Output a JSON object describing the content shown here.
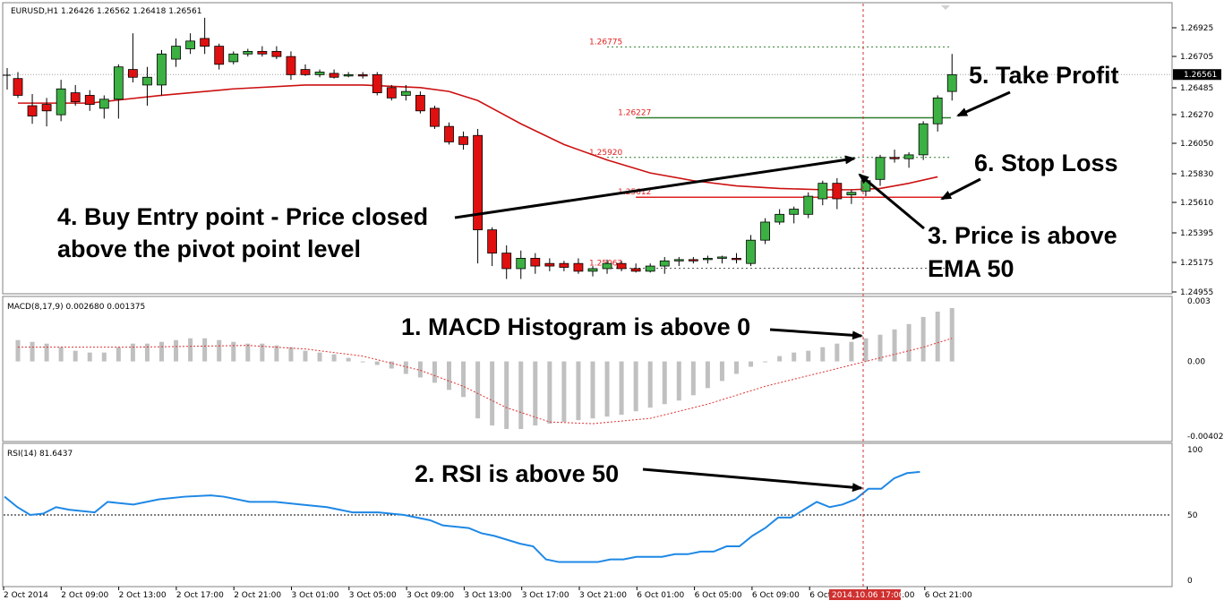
{
  "header": {
    "symbol_line": "EURUSD,H1  1.26426 1.26562 1.26418 1.26561",
    "macd_line": "MACD(8,17,9) 0.002680 0.001375",
    "rsi_line": "RSI(14) 81.6437"
  },
  "colors": {
    "bull": "#3cb043",
    "bear": "#e01010",
    "ema": "#cc1010",
    "take_profit_line": "#2e7d2e",
    "stop_loss_line": "#e02020",
    "rsi": "#1e88e5",
    "macd_hist": "#c0c0c0",
    "macd_signal": "#e03030",
    "time_marker": "#d03030"
  },
  "annotations": {
    "macd": "1. MACD Histogram is above 0",
    "rsi": "2. RSI is above 50",
    "ema_line1": "3. Price is above",
    "ema_line2": "EMA 50",
    "entry_line1": "4. Buy Entry point - Price closed",
    "entry_line2": "above the pivot point level",
    "take_profit": "5. Take Profit",
    "stop_loss": "6. Stop Loss"
  },
  "chart_data": [
    {
      "id": "price",
      "type": "candlestick",
      "symbol": "EURUSD",
      "timeframe": "H1",
      "ylim": [
        1.24935,
        1.26985
      ],
      "y_ticks": [
        "1.26925",
        "1.26705",
        "1.26485",
        "1.26270",
        "1.26050",
        "1.25830",
        "1.25610",
        "1.25395",
        "1.25175",
        "1.24955"
      ],
      "current_price_label": "1.26561",
      "candles": [
        [
          1.2653,
          1.2658,
          1.2638,
          1.264
        ],
        [
          1.2632,
          1.2641,
          1.2618,
          1.2624
        ],
        [
          1.2633,
          1.2638,
          1.2616,
          1.2628
        ],
        [
          1.2625,
          1.2652,
          1.262,
          1.2645
        ],
        [
          1.2642,
          1.2648,
          1.2632,
          1.2635
        ],
        [
          1.264,
          1.2644,
          1.2628,
          1.2633
        ],
        [
          1.263,
          1.264,
          1.2622,
          1.2637
        ],
        [
          1.2637,
          1.2664,
          1.2622,
          1.2662
        ],
        [
          1.266,
          1.2688,
          1.265,
          1.2654
        ],
        [
          1.2648,
          1.2662,
          1.2632,
          1.2654
        ],
        [
          1.2648,
          1.2675,
          1.264,
          1.2672
        ],
        [
          1.2668,
          1.2684,
          1.2662,
          1.2678
        ],
        [
          1.2676,
          1.2688,
          1.2672,
          1.2682
        ],
        [
          1.2684,
          1.27,
          1.2672,
          1.2678
        ],
        [
          1.2678,
          1.268,
          1.266,
          1.2664
        ],
        [
          1.2666,
          1.2674,
          1.2664,
          1.2672
        ],
        [
          1.2672,
          1.2676,
          1.267,
          1.2674
        ],
        [
          1.2674,
          1.2678,
          1.267,
          1.2672
        ],
        [
          1.2674,
          1.2678,
          1.2668,
          1.267
        ],
        [
          1.267,
          1.2674,
          1.2652,
          1.2656
        ],
        [
          1.266,
          1.2664,
          1.2655,
          1.2656
        ],
        [
          1.2656,
          1.266,
          1.2654,
          1.2658
        ],
        [
          1.2657,
          1.266,
          1.2653,
          1.2654
        ],
        [
          1.2656,
          1.2658,
          1.2654,
          1.2656
        ],
        [
          1.2656,
          1.2658,
          1.2653,
          1.2655
        ],
        [
          1.2656,
          1.2658,
          1.264,
          1.2642
        ],
        [
          1.2646,
          1.2648,
          1.2636,
          1.2638
        ],
        [
          1.264,
          1.2648,
          1.2636,
          1.2643
        ],
        [
          1.264,
          1.2643,
          1.2626,
          1.2628
        ],
        [
          1.263,
          1.2632,
          1.2614,
          1.2616
        ],
        [
          1.2616,
          1.2619,
          1.2602,
          1.2604
        ],
        [
          1.2608,
          1.2612,
          1.2598,
          1.2602
        ],
        [
          1.2609,
          1.2614,
          1.251,
          1.2536
        ],
        [
          1.2536,
          1.2538,
          1.2508,
          1.2518
        ],
        [
          1.2518,
          1.2524,
          1.2498,
          1.2506
        ],
        [
          1.2506,
          1.252,
          1.2498,
          1.2514
        ],
        [
          1.2514,
          1.2518,
          1.2502,
          1.2508
        ],
        [
          1.251,
          1.2514,
          1.2504,
          1.2508
        ],
        [
          1.251,
          1.2512,
          1.2504,
          1.2507
        ],
        [
          1.251,
          1.2514,
          1.2502,
          1.2504
        ],
        [
          1.2504,
          1.2508,
          1.25,
          1.2506
        ],
        [
          1.2506,
          1.2513,
          1.2502,
          1.251
        ],
        [
          1.251,
          1.2512,
          1.2504,
          1.2506
        ],
        [
          1.2506,
          1.251,
          1.2503,
          1.2504
        ],
        [
          1.2504,
          1.251,
          1.2503,
          1.2508
        ],
        [
          1.2508,
          1.2515,
          1.2502,
          1.2512
        ],
        [
          1.2512,
          1.2515,
          1.2508,
          1.2513
        ],
        [
          1.2513,
          1.2515,
          1.251,
          1.2512
        ],
        [
          1.2513,
          1.2516,
          1.251,
          1.2514
        ],
        [
          1.2514,
          1.2516,
          1.251,
          1.2515
        ],
        [
          1.2514,
          1.2518,
          1.251,
          1.2513
        ],
        [
          1.251,
          1.2532,
          1.2508,
          1.2528
        ],
        [
          1.2528,
          1.2545,
          1.2525,
          1.2542
        ],
        [
          1.2542,
          1.2552,
          1.254,
          1.2548
        ],
        [
          1.2548,
          1.2554,
          1.2541,
          1.2552
        ],
        [
          1.2548,
          1.2565,
          1.2545,
          1.2562
        ],
        [
          1.256,
          1.2574,
          1.2555,
          1.2572
        ],
        [
          1.2572,
          1.2576,
          1.2552,
          1.256
        ],
        [
          1.2563,
          1.2567,
          1.2556,
          1.2565
        ],
        [
          1.2566,
          1.2577,
          1.2562,
          1.2574
        ],
        [
          1.2575,
          1.2594,
          1.257,
          1.2592
        ],
        [
          1.2592,
          1.2598,
          1.2588,
          1.2591
        ],
        [
          1.2591,
          1.2596,
          1.2584,
          1.2594
        ],
        [
          1.2594,
          1.262,
          1.259,
          1.2618
        ],
        [
          1.2618,
          1.264,
          1.2612,
          1.2638
        ],
        [
          1.2643,
          1.2672,
          1.2636,
          1.2656
        ]
      ],
      "ema50": [
        [
          0,
          1.2634
        ],
        [
          5,
          1.2634
        ],
        [
          10,
          1.264
        ],
        [
          15,
          1.2645
        ],
        [
          20,
          1.2648
        ],
        [
          24,
          1.2648
        ],
        [
          28,
          1.2646
        ],
        [
          30,
          1.2643
        ],
        [
          32,
          1.2636
        ],
        [
          35,
          1.2618
        ],
        [
          38,
          1.2602
        ],
        [
          41,
          1.259
        ],
        [
          44,
          1.258
        ],
        [
          47,
          1.2574
        ],
        [
          50,
          1.257
        ],
        [
          53,
          1.2568
        ],
        [
          56,
          1.2567
        ],
        [
          58,
          1.2567
        ],
        [
          60,
          1.2568
        ],
        [
          62,
          1.2572
        ],
        [
          64,
          1.2577
        ]
      ],
      "levels": [
        {
          "label": "1.26775",
          "value": 1.26775,
          "style": "dotted",
          "color": "#2e7d2e",
          "from_index": 41
        },
        {
          "label": "1.26227",
          "value": 1.26227,
          "style": "solid",
          "color": "#2e7d2e",
          "from_index": 43
        },
        {
          "label": "1.25920",
          "value": 1.2592,
          "style": "dotted",
          "color": "#2e7d2e",
          "from_index": 41
        },
        {
          "label": "1.25612",
          "value": 1.25612,
          "style": "solid",
          "color": "#e02020",
          "from_index": 43
        },
        {
          "label": "1.25063",
          "value": 1.25063,
          "style": "dotted",
          "color": "#555555",
          "from_index": 41
        }
      ]
    },
    {
      "id": "macd",
      "type": "bar",
      "indicator": "MACD(8,17,9)",
      "ylim": [
        -0.0042,
        0.0032
      ],
      "y_ticks": [
        "0.003",
        "0.00",
        "-0.004026"
      ],
      "histogram": [
        0.0012,
        0.0011,
        0.001,
        0.0008,
        0.0006,
        0.0005,
        0.0005,
        0.0008,
        0.001,
        0.001,
        0.0011,
        0.0012,
        0.0013,
        0.0013,
        0.0012,
        0.0011,
        0.001,
        0.001,
        0.0009,
        0.0008,
        0.0006,
        0.0005,
        0.0004,
        0.0002,
        0.0,
        -0.0002,
        -0.0004,
        -0.0007,
        -0.0009,
        -0.0012,
        -0.0016,
        -0.002,
        -0.0032,
        -0.0036,
        -0.0038,
        -0.0038,
        -0.0036,
        -0.0035,
        -0.0034,
        -0.0033,
        -0.0032,
        -0.0031,
        -0.003,
        -0.0028,
        -0.0026,
        -0.0024,
        -0.0022,
        -0.0019,
        -0.0015,
        -0.0011,
        -0.0007,
        -0.0003,
        0.0,
        0.0003,
        0.0005,
        0.0006,
        0.0008,
        0.001,
        0.0011,
        0.0013,
        0.0015,
        0.0018,
        0.0021,
        0.0025,
        0.0028,
        0.003
      ],
      "signal": [
        [
          0,
          0.0008
        ],
        [
          8,
          0.0008
        ],
        [
          16,
          0.0009
        ],
        [
          20,
          0.0007
        ],
        [
          24,
          0.0003
        ],
        [
          28,
          -0.0005
        ],
        [
          31,
          -0.0014
        ],
        [
          34,
          -0.0026
        ],
        [
          37,
          -0.0034
        ],
        [
          40,
          -0.0035
        ],
        [
          44,
          -0.0032
        ],
        [
          48,
          -0.0024
        ],
        [
          52,
          -0.0014
        ],
        [
          56,
          -0.0006
        ],
        [
          60,
          0.0002
        ],
        [
          63,
          0.0008
        ],
        [
          65,
          0.0013
        ]
      ]
    },
    {
      "id": "rsi",
      "type": "line",
      "indicator": "RSI(14)",
      "ylim": [
        0,
        100
      ],
      "y_ticks": [
        "100",
        "50",
        "0"
      ],
      "level": 50,
      "values": [
        [
          0,
          64
        ],
        [
          2,
          56
        ],
        [
          4,
          50
        ],
        [
          6,
          51
        ],
        [
          8,
          56
        ],
        [
          10,
          54
        ],
        [
          14,
          52
        ],
        [
          16,
          60
        ],
        [
          20,
          58
        ],
        [
          24,
          62
        ],
        [
          28,
          64
        ],
        [
          32,
          65
        ],
        [
          34,
          64
        ],
        [
          38,
          60
        ],
        [
          42,
          60
        ],
        [
          46,
          58
        ],
        [
          50,
          56
        ],
        [
          54,
          52
        ],
        [
          58,
          52
        ],
        [
          62,
          50
        ],
        [
          66,
          46
        ],
        [
          68,
          42
        ],
        [
          72,
          40
        ],
        [
          74,
          36
        ],
        [
          76,
          34
        ],
        [
          80,
          28
        ],
        [
          82,
          26
        ],
        [
          84,
          16
        ],
        [
          86,
          14
        ],
        [
          88,
          14
        ],
        [
          90,
          14
        ],
        [
          92,
          14
        ],
        [
          94,
          16
        ],
        [
          96,
          16
        ],
        [
          98,
          18
        ],
        [
          100,
          18
        ],
        [
          102,
          18
        ],
        [
          104,
          20
        ],
        [
          106,
          20
        ],
        [
          108,
          22
        ],
        [
          110,
          22
        ],
        [
          112,
          26
        ],
        [
          114,
          26
        ],
        [
          116,
          34
        ],
        [
          118,
          40
        ],
        [
          120,
          48
        ],
        [
          122,
          48
        ],
        [
          124,
          54
        ],
        [
          126,
          60
        ],
        [
          128,
          56
        ],
        [
          130,
          58
        ],
        [
          132,
          62
        ],
        [
          134,
          70
        ],
        [
          136,
          70
        ],
        [
          138,
          78
        ],
        [
          140,
          82
        ],
        [
          142,
          83
        ]
      ]
    }
  ],
  "time_axis": {
    "labels": [
      "2 Oct 2014",
      "2 Oct 09:00",
      "2 Oct 13:00",
      "2 Oct 17:00",
      "2 Oct 21:00",
      "3 Oct 01:00",
      "3 Oct 05:00",
      "3 Oct 09:00",
      "3 Oct 13:00",
      "3 Oct 17:00",
      "3 Oct 21:00",
      "6 Oct 01:00",
      "6 Oct 05:00",
      "6 Oct 09:00",
      "6 Oct",
      "6 Oct 17:00",
      "6 Oct 21:00"
    ],
    "highlight_label": "2014.10.06 17:00"
  }
}
